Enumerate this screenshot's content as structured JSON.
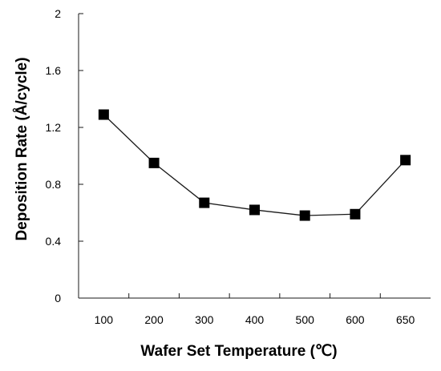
{
  "chart_data": {
    "type": "line",
    "title": "",
    "xlabel": "Wafer Set Temperature (℃)",
    "ylabel": "Deposition Rate (Å/cycle)",
    "categories": [
      "100",
      "200",
      "300",
      "400",
      "500",
      "600",
      "650"
    ],
    "series": [
      {
        "values": [
          1.29,
          0.95,
          0.67,
          0.62,
          0.58,
          0.59,
          0.97
        ]
      }
    ],
    "ylim": [
      0,
      2
    ],
    "yticks": [
      "0",
      "0.4",
      "0.8",
      "1.2",
      "1.6",
      "2"
    ],
    "grid": false,
    "legend": "none",
    "marker": "square",
    "colors": {
      "line": "#1a1a1a",
      "marker": "#000000",
      "axis": "#1a1a1a"
    }
  }
}
